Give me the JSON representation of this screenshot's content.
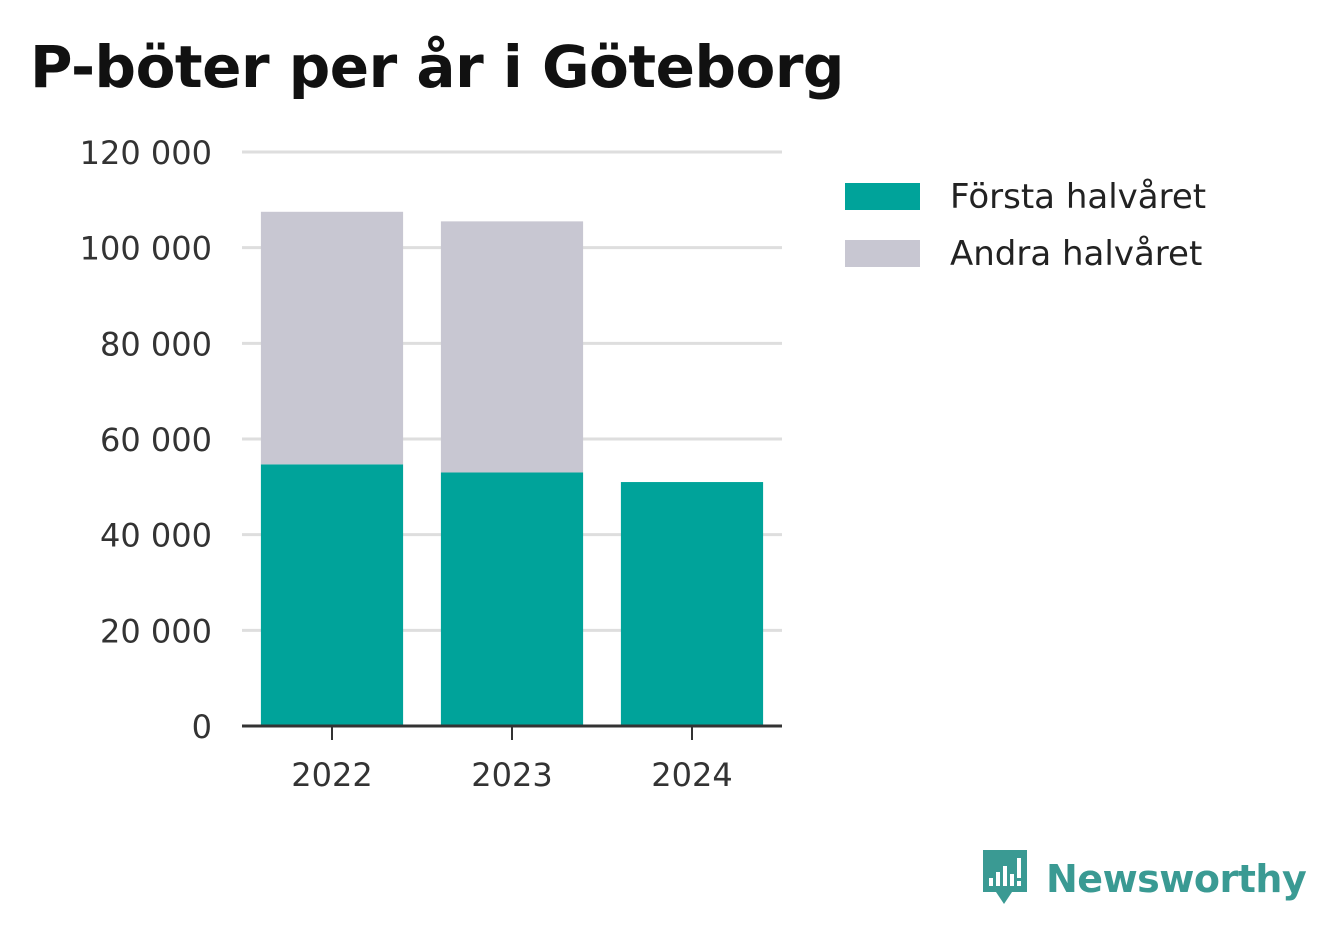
{
  "colors": {
    "first_half": "#00a39a",
    "second_half": "#c8c7d2",
    "grid": "#dedede",
    "axis": "#333333",
    "tick_text": "#333333",
    "brand": "#3a9a93"
  },
  "brand": {
    "name": "Newsworthy",
    "icon": "newsworthy-logo-icon"
  },
  "chart_data": {
    "type": "bar",
    "stacked": true,
    "title": "P-böter per år i Göteborg",
    "xlabel": "",
    "ylabel": "",
    "categories": [
      "2022",
      "2023",
      "2024"
    ],
    "series": [
      {
        "name": "Första halvåret",
        "color": "#00a39a",
        "values": [
          54700,
          53000,
          51000
        ]
      },
      {
        "name": "Andra halvåret",
        "color": "#c8c7d2",
        "values": [
          52800,
          52500,
          0
        ]
      }
    ],
    "ylim": [
      0,
      120000
    ],
    "yticks": [
      0,
      20000,
      40000,
      60000,
      80000,
      100000,
      120000
    ],
    "ytick_labels": [
      "0",
      "20 000",
      "40 000",
      "60 000",
      "80 000",
      "100 000",
      "120 000"
    ],
    "grid": true,
    "legend_position": "right"
  }
}
